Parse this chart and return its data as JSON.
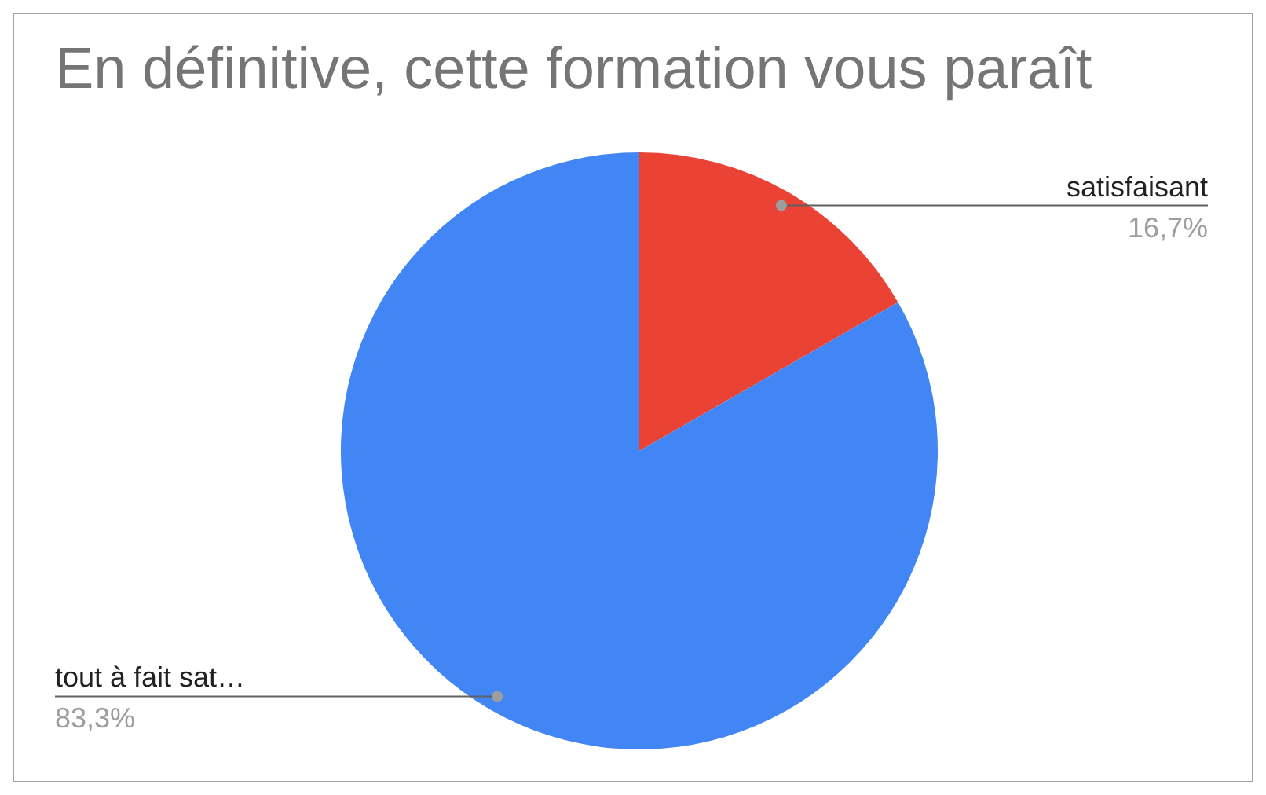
{
  "chart_data": {
    "type": "pie",
    "title": "En définitive, cette formation vous paraît",
    "categories": [
      "satisfaisant",
      "tout à fait sat…"
    ],
    "values": [
      16.7,
      83.3
    ],
    "colors": [
      "#ea4335",
      "#4285f4"
    ],
    "value_labels": [
      "16,7%",
      "83,3%"
    ]
  }
}
